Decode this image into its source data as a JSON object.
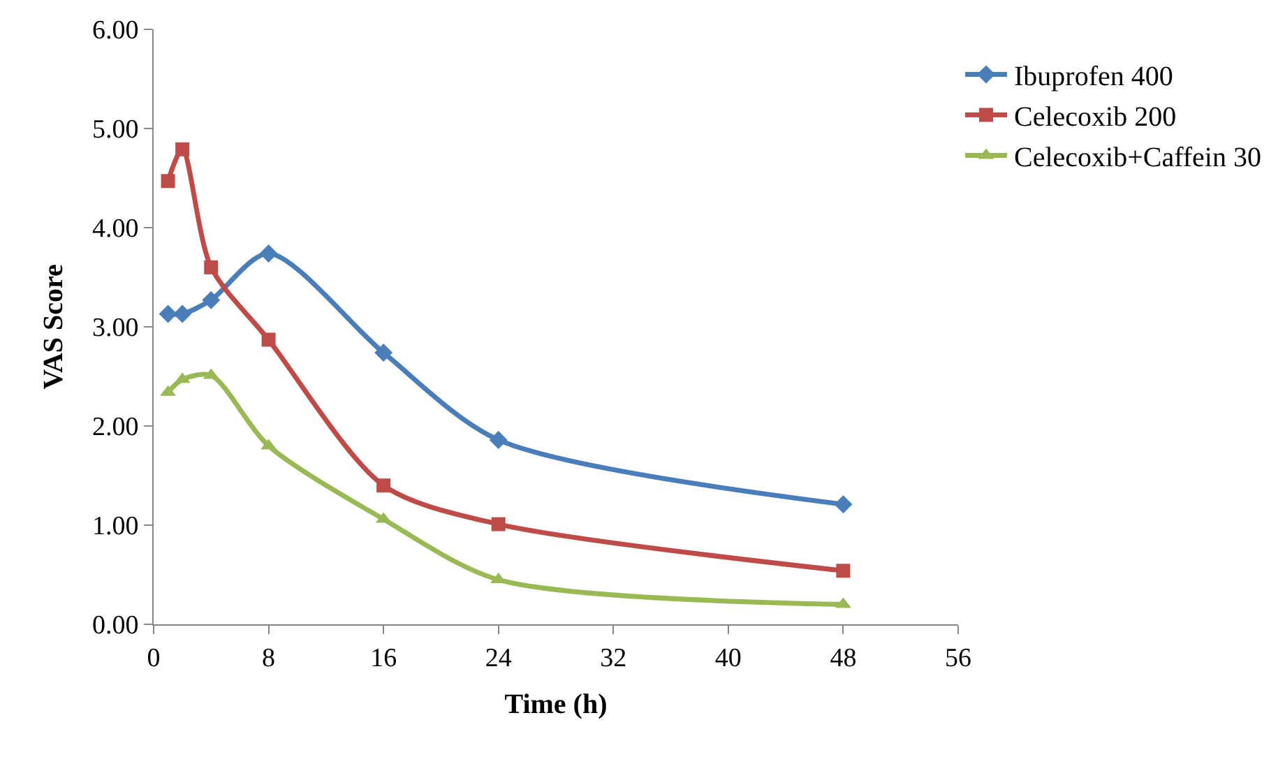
{
  "chart_data": {
    "type": "line",
    "xlabel": "Time (h)",
    "ylabel": "VAS Score",
    "x": [
      1,
      2,
      4,
      8,
      16,
      24,
      48
    ],
    "series": [
      {
        "name": "Ibuprofen 400",
        "color": "#4a7ebb",
        "marker": "diamond",
        "values": [
          3.13,
          3.13,
          3.27,
          3.74,
          2.74,
          1.86,
          1.21
        ]
      },
      {
        "name": "Celecoxib 200",
        "color": "#be4b48",
        "marker": "square",
        "values": [
          4.47,
          4.79,
          3.6,
          2.87,
          1.4,
          1.01,
          0.54
        ]
      },
      {
        "name": "Celecoxib+Caffein 30",
        "color": "#98b954",
        "marker": "triangle",
        "values": [
          2.34,
          2.47,
          2.51,
          1.8,
          1.06,
          0.45,
          0.2
        ]
      }
    ],
    "xlim": [
      0,
      56
    ],
    "xticks": [
      0,
      8,
      16,
      24,
      32,
      40,
      48,
      56
    ],
    "ylim": [
      0,
      6
    ],
    "yticks": [
      {
        "value": 0,
        "label": "0.00"
      },
      {
        "value": 1,
        "label": "1.00"
      },
      {
        "value": 2,
        "label": "2.00"
      },
      {
        "value": 3,
        "label": "3.00"
      },
      {
        "value": 4,
        "label": "4.00"
      },
      {
        "value": 5,
        "label": "5.00"
      },
      {
        "value": 6,
        "label": "6.00"
      }
    ],
    "grid": false,
    "legend": "top right"
  }
}
